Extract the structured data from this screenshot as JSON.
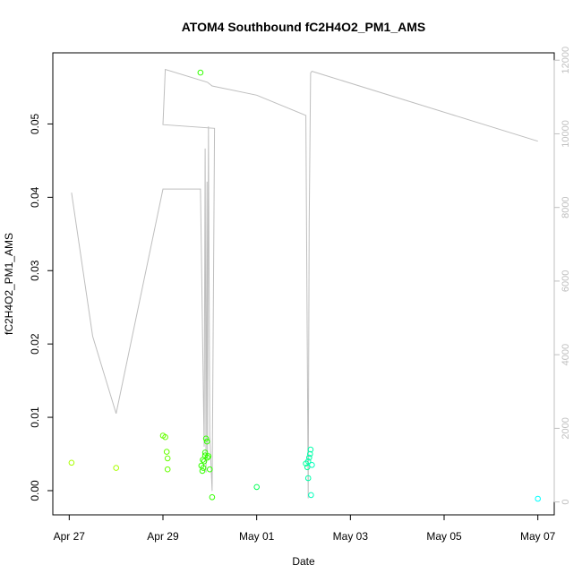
{
  "chart_data": {
    "type": "scatter",
    "title": "ATOM4 Southbound fC2H4O2_PM1_AMS",
    "xlabel": "Date",
    "ylabel": "fC2H4O2_PM1_AMS",
    "x_ticks": [
      "Apr 27",
      "Apr 29",
      "May 01",
      "May 03",
      "May 05",
      "May 07"
    ],
    "y_ticks": [
      "0.00",
      "0.01",
      "0.02",
      "0.03",
      "0.04",
      "0.05"
    ],
    "y2_ticks": [
      "0",
      "2000",
      "4000",
      "6000",
      "8000",
      "10000",
      "12000"
    ],
    "x_range_days": [
      -0.35,
      10.35
    ],
    "xlim_dates": [
      "Apr 26",
      "May 07"
    ],
    "ylim": [
      -0.0033,
      0.0597
    ],
    "y2lim": [
      -350,
      12200
    ],
    "grid": false,
    "colors": {
      "axis": "#000000",
      "right_axis": "#bfbfbf",
      "altitude_line": "#bebebe"
    },
    "series": [
      {
        "type": "scatter",
        "x_days": [
          0.05,
          1.0,
          2.0,
          2.05,
          2.08,
          2.1,
          2.1,
          2.8,
          2.82,
          2.84,
          2.85,
          2.86,
          2.88,
          2.9,
          2.9,
          2.92,
          2.94,
          2.95,
          2.97,
          3.0,
          3.05,
          4.0,
          5.05,
          5.08,
          5.1,
          5.1,
          5.12,
          5.14,
          5.15,
          5.16,
          5.18,
          10.0
        ],
        "y": [
          0.0038,
          0.0031,
          0.0075,
          0.0073,
          0.0053,
          0.0044,
          0.0029,
          0.057,
          0.0034,
          0.0027,
          0.0042,
          0.0031,
          0.004,
          0.0052,
          0.0048,
          0.0071,
          0.0067,
          0.0045,
          0.0047,
          0.0029,
          -0.0009,
          0.0005,
          0.0037,
          0.0032,
          0.0017,
          0.004,
          0.0045,
          0.005,
          0.0056,
          -0.0006,
          0.0035,
          -0.0011
        ],
        "colors": [
          "#aaff00",
          "#aaff00",
          "#66ff00",
          "#66ff00",
          "#66ff00",
          "#66ff00",
          "#66ff00",
          "#33ff00",
          "#33ff00",
          "#33ff00",
          "#33ff00",
          "#33ff00",
          "#33ff00",
          "#33ff00",
          "#33ff00",
          "#33ff00",
          "#33ff00",
          "#33ff00",
          "#33ff00",
          "#33ff00",
          "#33ff00",
          "#00ff55",
          "#00ff99",
          "#00ff99",
          "#00ffaa",
          "#00ffaa",
          "#00ffaa",
          "#00ffaa",
          "#00ffaa",
          "#00ffbb",
          "#00ffbb",
          "#00ffff"
        ]
      },
      {
        "type": "line",
        "axis": "right",
        "x_days": [
          0.05,
          0.5,
          1.0,
          1.0,
          2.0,
          2.8,
          2.88,
          2.9,
          2.92,
          2.94,
          2.95,
          2.97,
          3.0,
          3.05,
          3.1,
          3.1,
          2.0,
          2.05,
          2.95,
          3.05,
          4.0,
          5.05,
          5.1,
          5.12,
          5.15,
          5.18,
          10.0
        ],
        "y": [
          8400,
          4500,
          2400,
          2400,
          8500,
          8500,
          1500,
          9600,
          800,
          8700,
          1200,
          10200,
          1800,
          300,
          10150,
          10150,
          10250,
          11750,
          11400,
          11300,
          11050,
          10500,
          100,
          7600,
          11650,
          11700,
          9800
        ]
      }
    ]
  }
}
